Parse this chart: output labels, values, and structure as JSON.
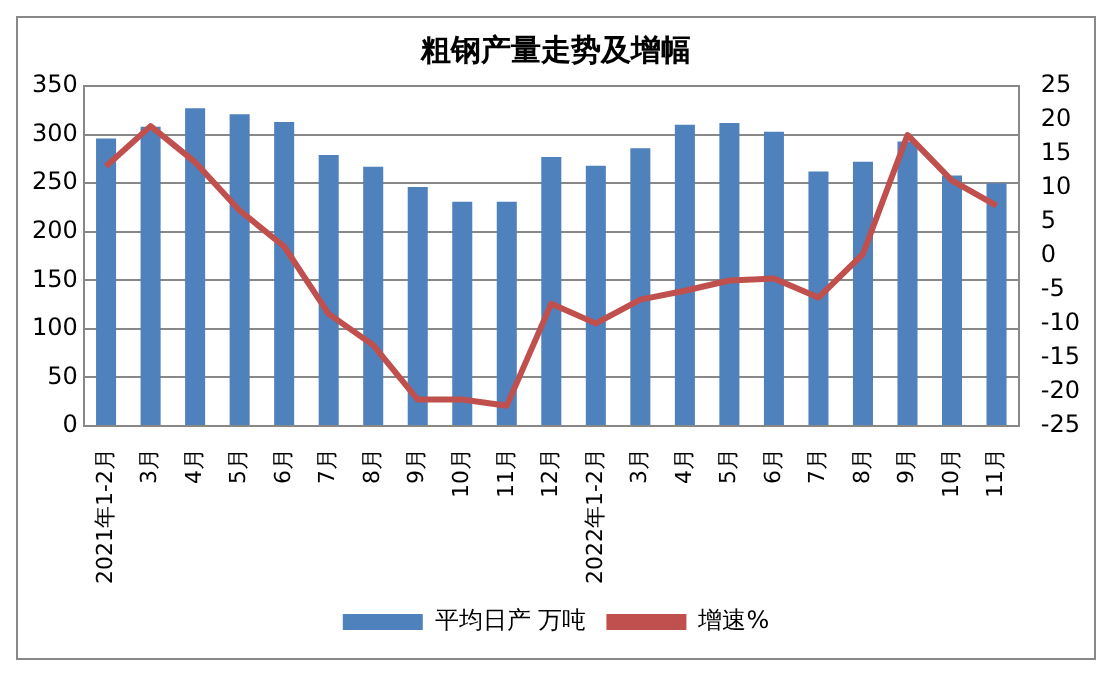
{
  "chart_data": {
    "type": "bar",
    "title": "粗钢产量走势及增幅",
    "categories": [
      "2021年1-2月",
      "3月",
      "4月",
      "5月",
      "6月",
      "7月",
      "8月",
      "9月",
      "10月",
      "11月",
      "12月",
      "2022年1-2月",
      "3月",
      "4月",
      "5月",
      "6月",
      "7月",
      "8月",
      "9月",
      "10月",
      "11月"
    ],
    "series": [
      {
        "name": "平均日产 万吨",
        "color": "#4f81bd",
        "values": [
          296,
          308,
          327,
          321,
          313,
          279,
          267,
          246,
          231,
          231,
          277,
          268,
          286,
          310,
          312,
          303,
          262,
          272,
          293,
          258,
          250
        ]
      },
      {
        "name": "增速%",
        "type": "line",
        "axis": "y2",
        "color": "#c0504d",
        "values": [
          13.2,
          19.1,
          13.8,
          6.7,
          1.4,
          -8.5,
          -13.1,
          -21.1,
          -21.1,
          -22,
          -7,
          -9.9,
          -6.4,
          -5.1,
          -3.6,
          -3.3,
          -6.1,
          0.3,
          17.8,
          11.1,
          7.4
        ]
      }
    ],
    "ylim": [
      0,
      350
    ],
    "yticks": [
      0,
      50,
      100,
      150,
      200,
      250,
      300,
      350
    ],
    "y2lim": [
      -25,
      25
    ],
    "y2ticks": [
      -25,
      -20,
      -15,
      -10,
      -5,
      0,
      5,
      10,
      15,
      20,
      25
    ],
    "grid": "y",
    "legend": "bottom",
    "marker": "none",
    "line_style": "solid"
  }
}
